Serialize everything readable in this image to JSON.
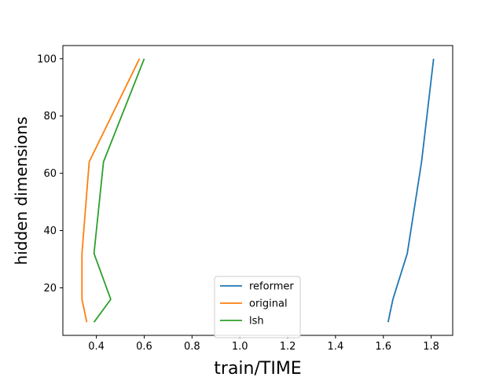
{
  "chart_data": {
    "type": "line",
    "title": "",
    "xlabel": "train/TIME",
    "ylabel": "hidden dimensions",
    "xlim": [
      0.26,
      1.89
    ],
    "ylim": [
      3.4,
      104.6
    ],
    "xticks": [
      0.4,
      0.6,
      0.8,
      1.0,
      1.2,
      1.4,
      1.6,
      1.8
    ],
    "yticks": [
      20,
      40,
      60,
      80,
      100
    ],
    "grid": false,
    "legend_position": "lower-center",
    "series": [
      {
        "name": "reformer",
        "color": "#1f77b4",
        "points": [
          [
            1.62,
            8
          ],
          [
            1.64,
            16
          ],
          [
            1.7,
            32
          ],
          [
            1.76,
            64
          ],
          [
            1.81,
            100
          ]
        ]
      },
      {
        "name": "original",
        "color": "#ff7f0e",
        "points": [
          [
            0.36,
            8
          ],
          [
            0.34,
            16
          ],
          [
            0.34,
            32
          ],
          [
            0.37,
            64
          ],
          [
            0.58,
            100
          ]
        ]
      },
      {
        "name": "lsh",
        "color": "#2ca02c",
        "points": [
          [
            0.39,
            8
          ],
          [
            0.46,
            16
          ],
          [
            0.39,
            32
          ],
          [
            0.43,
            64
          ],
          [
            0.6,
            100
          ]
        ]
      }
    ]
  }
}
